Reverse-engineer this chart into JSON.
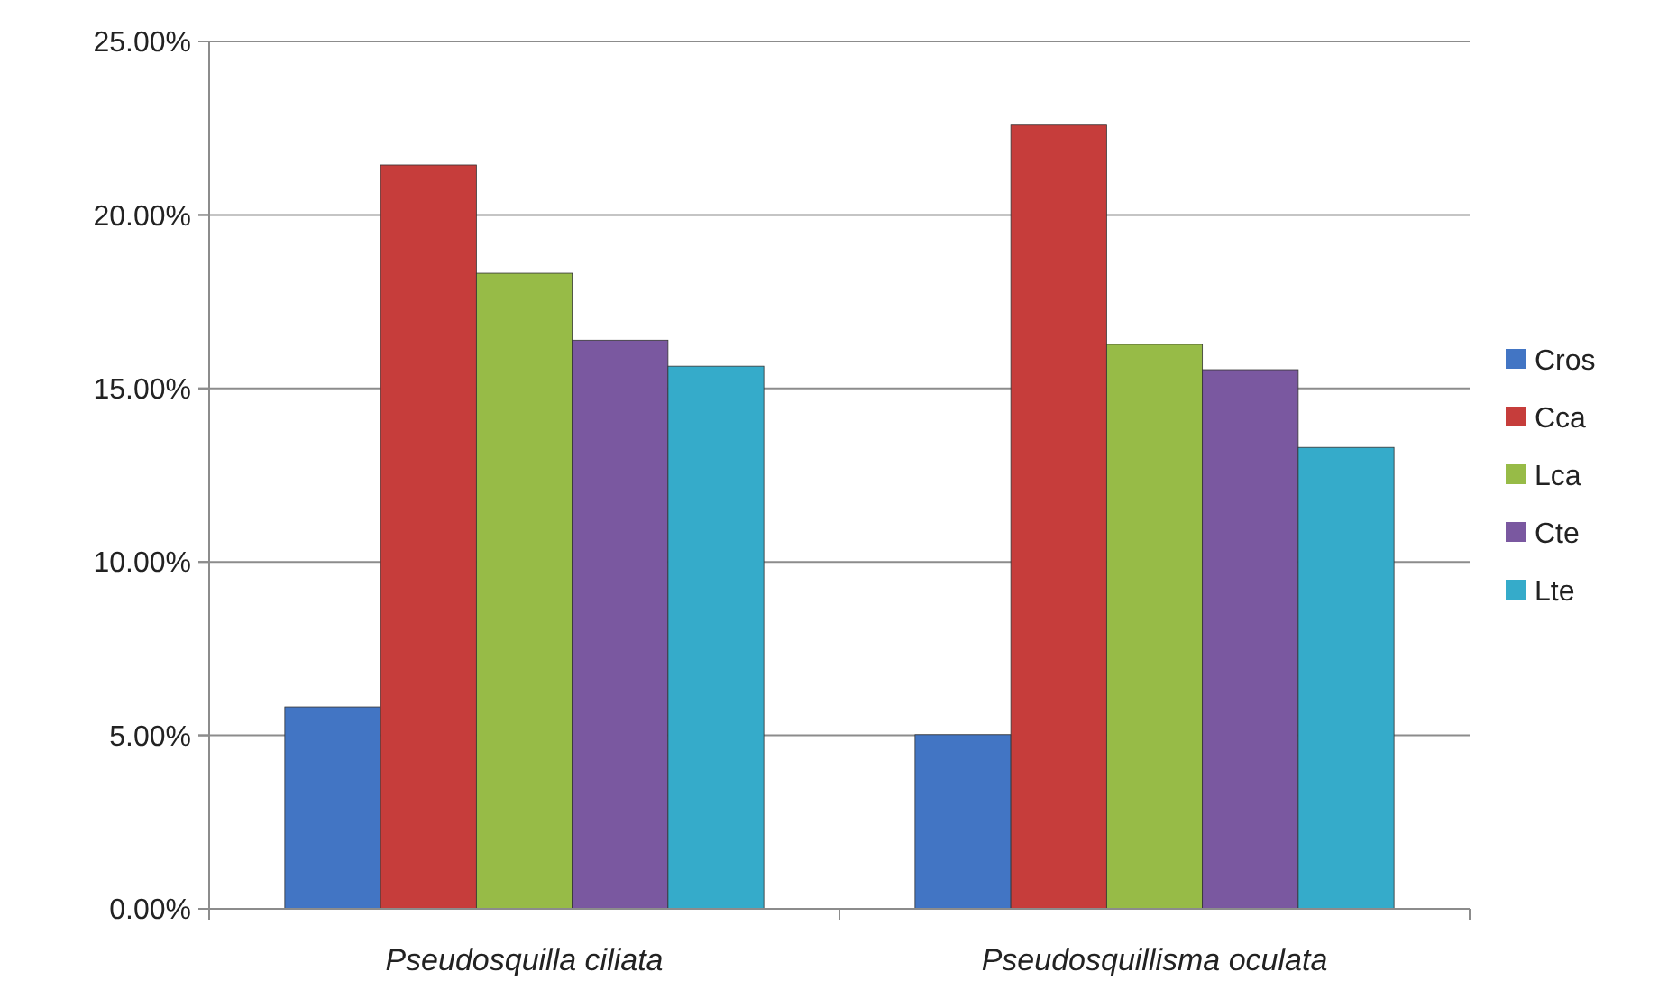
{
  "chart_data": {
    "type": "bar",
    "categories": [
      "Pseudosquilla ciliata",
      "Pseudosquillisma oculata"
    ],
    "series": [
      {
        "name": "Cros",
        "color": "#4275c4",
        "values": [
          5.82,
          5.02
        ]
      },
      {
        "name": "Cca",
        "color": "#c63d3b",
        "values": [
          21.44,
          22.59
        ]
      },
      {
        "name": "Lca",
        "color": "#97bb47",
        "values": [
          18.32,
          16.27
        ]
      },
      {
        "name": "Cte",
        "color": "#7a58a0",
        "values": [
          16.39,
          15.54
        ]
      },
      {
        "name": "Lte",
        "color": "#35abca",
        "values": [
          15.64,
          13.3
        ]
      }
    ],
    "ylim": [
      0,
      25
    ],
    "yticks": [
      {
        "value": 0,
        "label": "0.00%"
      },
      {
        "value": 5,
        "label": "5.00%"
      },
      {
        "value": 10,
        "label": "10.00%"
      },
      {
        "value": 15,
        "label": "15.00%"
      },
      {
        "value": 20,
        "label": "20.00%"
      },
      {
        "value": 25,
        "label": "25.00%"
      }
    ],
    "grid": "y",
    "legend": "right"
  }
}
